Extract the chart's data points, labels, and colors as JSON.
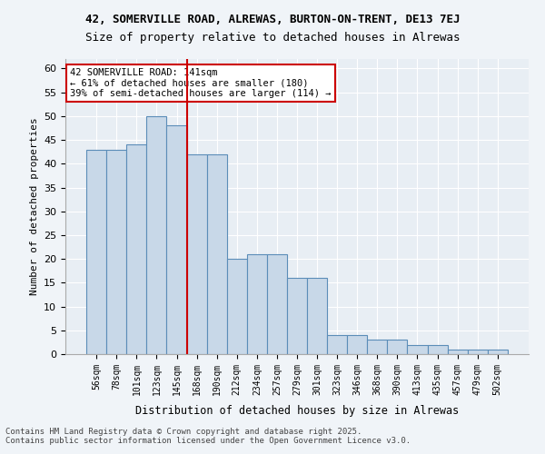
{
  "title_line1": "42, SOMERVILLE ROAD, ALREWAS, BURTON-ON-TRENT, DE13 7EJ",
  "title_line2": "Size of property relative to detached houses in Alrewas",
  "xlabel": "Distribution of detached houses by size in Alrewas",
  "ylabel": "Number of detached properties",
  "categories": [
    "56sqm",
    "78sqm",
    "101sqm",
    "123sqm",
    "145sqm",
    "168sqm",
    "190sqm",
    "212sqm",
    "234sqm",
    "257sqm",
    "279sqm",
    "301sqm",
    "323sqm",
    "346sqm",
    "368sqm",
    "390sqm",
    "413sqm",
    "435sqm",
    "457sqm",
    "479sqm",
    "502sqm"
  ],
  "values": [
    43,
    43,
    44,
    50,
    48,
    42,
    42,
    20,
    21,
    21,
    16,
    16,
    4,
    4,
    3,
    3,
    2,
    2,
    1,
    1,
    1
  ],
  "bar_color": "#c8d8e8",
  "bar_edge_color": "#5b8db8",
  "bg_color": "#e8eef4",
  "grid_color": "#ffffff",
  "vline_color": "#cc0000",
  "vline_position": 4.5,
  "annotation_text": "42 SOMERVILLE ROAD: 141sqm\n← 61% of detached houses are smaller (180)\n39% of semi-detached houses are larger (114) →",
  "annotation_box_color": "#ffffff",
  "annotation_box_edge": "#cc0000",
  "ylim": [
    0,
    62
  ],
  "yticks": [
    0,
    5,
    10,
    15,
    20,
    25,
    30,
    35,
    40,
    45,
    50,
    55,
    60
  ],
  "footnote": "Contains HM Land Registry data © Crown copyright and database right 2025.\nContains public sector information licensed under the Open Government Licence v3.0."
}
